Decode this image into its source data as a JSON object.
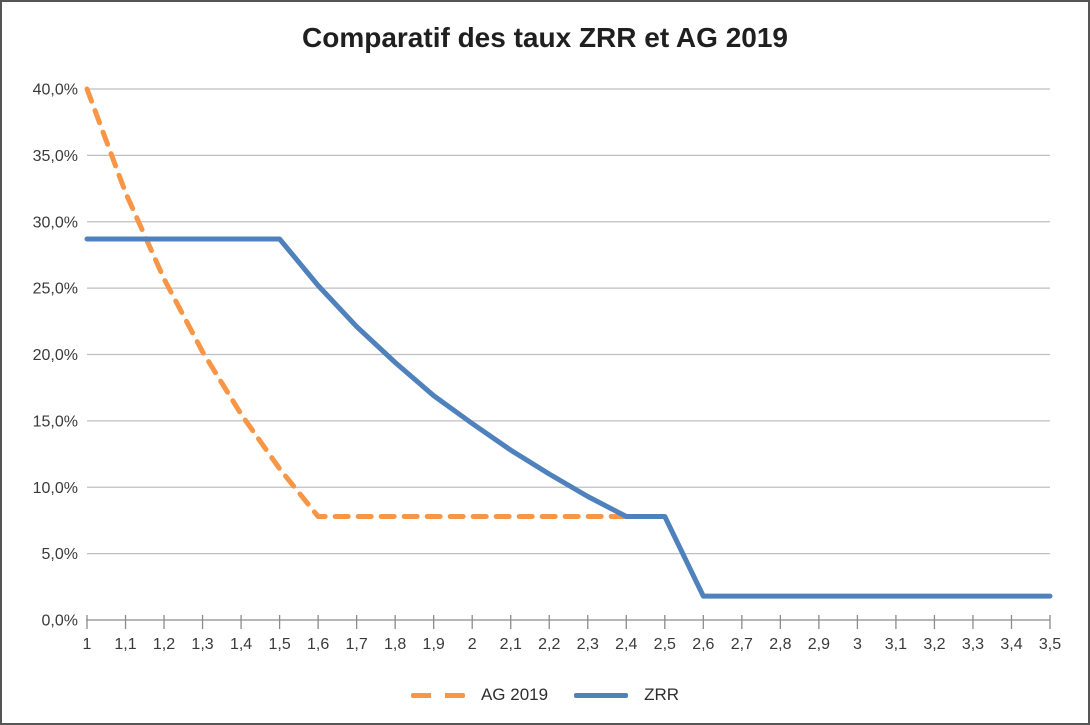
{
  "chart_data": {
    "type": "line",
    "title": "Comparatif des taux ZRR et AG 2019",
    "xlabel": "",
    "ylabel": "",
    "grid": true,
    "legend_position": "bottom",
    "x_axis": {
      "min": 1,
      "max": 3.5,
      "step": 0.1
    },
    "y_axis": {
      "min": 0,
      "max": 40,
      "step": 5,
      "tick_labels": [
        "0,0%",
        "5,0%",
        "10,0%",
        "15,0%",
        "20,0%",
        "25,0%",
        "30,0%",
        "35,0%",
        "40,0%"
      ]
    },
    "x": [
      1,
      1.1,
      1.2,
      1.3,
      1.4,
      1.5,
      1.6,
      1.7,
      1.8,
      1.9,
      2,
      2.1,
      2.2,
      2.3,
      2.4,
      2.5,
      2.6,
      2.7,
      2.8,
      2.9,
      3,
      3.1,
      3.2,
      3.3,
      3.4,
      3.5
    ],
    "x_tick_labels": [
      "1",
      "1,1",
      "1,2",
      "1,3",
      "1,4",
      "1,5",
      "1,6",
      "1,7",
      "1,8",
      "1,9",
      "2",
      "2,1",
      "2,2",
      "2,3",
      "2,4",
      "2,5",
      "2,6",
      "2,7",
      "2,8",
      "2,9",
      "3",
      "3,1",
      "3,2",
      "3,3",
      "3,4",
      "3,5"
    ],
    "series": [
      {
        "name": "AG 2019",
        "style": "dashed",
        "color": "#F79646",
        "values": [
          40.0,
          32.2,
          25.7,
          20.2,
          15.5,
          11.4,
          7.8,
          7.8,
          7.8,
          7.8,
          7.8,
          7.8,
          7.8,
          7.8,
          7.8
        ]
      },
      {
        "name": "ZRR",
        "style": "solid",
        "color": "#4F81BD",
        "values": [
          28.7,
          28.7,
          28.7,
          28.7,
          28.7,
          28.7,
          25.2,
          22.1,
          19.4,
          16.9,
          14.8,
          12.8,
          11.0,
          9.3,
          7.8,
          7.8,
          1.8,
          1.8,
          1.8,
          1.8,
          1.8,
          1.8,
          1.8,
          1.8,
          1.8,
          1.8
        ]
      }
    ],
    "colors": {
      "gridline": "#BFBFBF",
      "axis": "#8C8C8C",
      "tick_text": "#3a3a3a",
      "title_text": "#1f1f1f",
      "frame_border": "#555555",
      "background": "#ffffff"
    }
  }
}
